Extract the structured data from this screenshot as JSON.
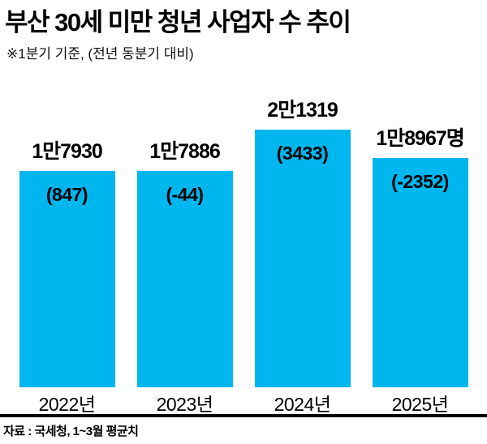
{
  "title": "부산 30세 미만 청년 사업자 수 추이",
  "subtitle": "※1분기 기준, (전년 동분기 대비)",
  "source": "자료 : 국세청, 1~3월 평균치",
  "colors": {
    "bar": "#00b6ef",
    "text": "#000000",
    "rule": "#000000"
  },
  "chart_data": {
    "type": "bar",
    "title": "부산 30세 미만 청년 사업자 수 추이",
    "subtitle": "※1분기 기준, (전년 동분기 대비)",
    "categories": [
      "2022년",
      "2023년",
      "2024년",
      "2025년"
    ],
    "values": [
      17930,
      17886,
      21319,
      18967
    ],
    "value_labels": [
      "1만7930",
      "1만7886",
      "2만1319",
      "1만8967명"
    ],
    "changes": [
      847,
      -44,
      3433,
      -2352
    ],
    "change_labels": [
      "(847)",
      "(-44)",
      "(3433)",
      "(-2352)"
    ],
    "ylim": [
      0,
      21319
    ],
    "xlabel": "",
    "ylabel": "",
    "grid": false,
    "legend": "none",
    "source": "자료 : 국세청, 1~3월 평균치"
  }
}
